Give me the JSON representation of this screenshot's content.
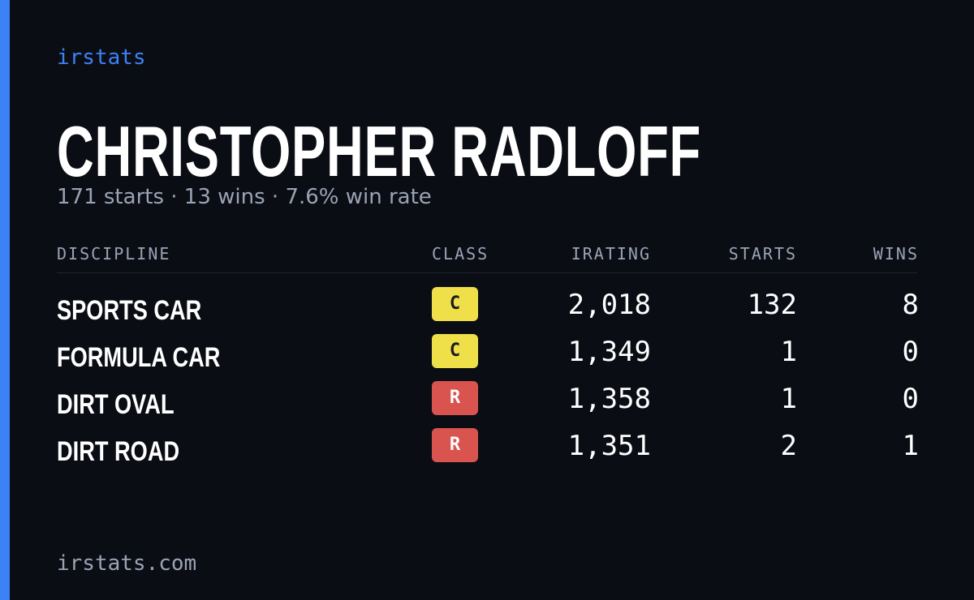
{
  "brand": "irstats",
  "name": "CHRISTOPHER RADLOFF",
  "summary": "171 starts · 13 wins · 7.6% win rate",
  "table": {
    "headers": [
      "DISCIPLINE",
      "CLASS",
      "IRATING",
      "STARTS",
      "WINS"
    ],
    "rows": [
      {
        "discipline": "SPORTS CAR",
        "class": "C",
        "class_color": "#efe04a",
        "irating": "2,018",
        "starts": "132",
        "wins": "8"
      },
      {
        "discipline": "FORMULA CAR",
        "class": "C",
        "class_color": "#efe04a",
        "irating": "1,349",
        "starts": "1",
        "wins": "0"
      },
      {
        "discipline": "DIRT OVAL",
        "class": "R",
        "class_color": "#d9534f",
        "irating": "1,358",
        "starts": "1",
        "wins": "0"
      },
      {
        "discipline": "DIRT ROAD",
        "class": "R",
        "class_color": "#d9534f",
        "irating": "1,351",
        "starts": "2",
        "wins": "1"
      }
    ]
  },
  "footer": "irstats.com"
}
